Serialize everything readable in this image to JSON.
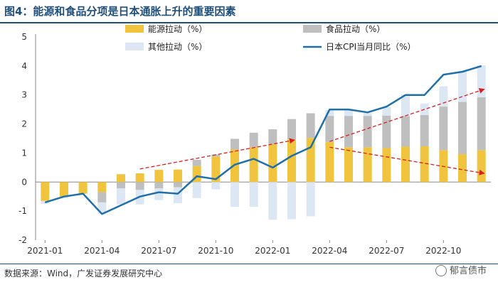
{
  "header": {
    "title": "图4：能源和食品分项是日本通胀上升的重要因素"
  },
  "footer": {
    "source": "数据来源：Wind，广发证券发展研究中心",
    "watermark": "郁言债市"
  },
  "colors": {
    "energy": "#f0c43c",
    "food": "#bfbfbf",
    "other": "#dde7f4",
    "cpi": "#1f6fa8",
    "trend": "#d42020"
  },
  "chart_data": {
    "type": "bar",
    "stacked": true,
    "title": "能源和食品分项是日本通胀上升的重要因素",
    "ylim": [
      -2,
      5
    ],
    "yticks": [
      -2,
      -1,
      0,
      1,
      2,
      3,
      4,
      5
    ],
    "xticks": [
      "2021-01",
      "2021-04",
      "2021-07",
      "2021-10",
      "2022-01",
      "2022-04",
      "2022-07",
      "2022-10"
    ],
    "categories": [
      "2021-01",
      "2021-02",
      "2021-03",
      "2021-04",
      "2021-05",
      "2021-06",
      "2021-07",
      "2021-08",
      "2021-09",
      "2021-10",
      "2021-11",
      "2021-12",
      "2022-01",
      "2022-02",
      "2022-03",
      "2022-04",
      "2022-05",
      "2022-06",
      "2022-07",
      "2022-08",
      "2022-09",
      "2022-10",
      "2022-11",
      "2022-12"
    ],
    "series": [
      {
        "name": "能源拉动（%）",
        "kind": "bar",
        "values": [
          -0.65,
          -0.5,
          -0.4,
          -0.35,
          0.27,
          0.3,
          0.42,
          0.43,
          0.55,
          0.88,
          1.12,
          1.2,
          1.3,
          1.47,
          1.52,
          1.38,
          1.2,
          1.2,
          1.17,
          1.22,
          1.23,
          1.1,
          0.96,
          1.1
        ]
      },
      {
        "name": "食品拉动（%）",
        "kind": "bar",
        "values": [
          0.0,
          0.0,
          0.0,
          -0.35,
          -0.22,
          -0.27,
          -0.22,
          -0.18,
          0.22,
          0.07,
          0.37,
          0.5,
          0.52,
          0.7,
          0.85,
          0.9,
          1.08,
          1.08,
          1.12,
          1.05,
          1.08,
          1.5,
          1.8,
          1.82
        ]
      },
      {
        "name": "其他拉动（%）",
        "kind": "bar",
        "values": [
          -0.1,
          -0.05,
          0.0,
          -0.4,
          -0.55,
          -0.5,
          -0.4,
          -0.55,
          -0.55,
          -0.25,
          -0.85,
          -0.85,
          -1.3,
          -1.28,
          -1.18,
          0.2,
          0.2,
          0.1,
          0.3,
          0.75,
          0.4,
          0.7,
          1.06,
          1.1
        ]
      },
      {
        "name": "日本CPI当月同比（%）",
        "kind": "line",
        "values": [
          -0.7,
          -0.5,
          -0.4,
          -1.1,
          -0.8,
          -0.5,
          -0.35,
          -0.4,
          0.2,
          0.1,
          0.6,
          0.8,
          0.5,
          0.9,
          1.2,
          2.5,
          2.5,
          2.4,
          2.6,
          3.0,
          3.0,
          3.7,
          3.8,
          4.0
        ]
      }
    ],
    "legend": [
      "能源拉动（%）",
      "食品拉动（%）",
      "其他拉动（%）",
      "日本CPI当月同比（%）"
    ],
    "annotations": [
      {
        "type": "arrow",
        "from": [
          "2021-06",
          0.45
        ],
        "to": [
          "2022-02",
          1.45
        ]
      },
      {
        "type": "arrow",
        "from": [
          "2022-04",
          1.4
        ],
        "to": [
          "2022-12",
          3.2
        ]
      },
      {
        "type": "arrow",
        "from": [
          "2022-04",
          1.2
        ],
        "to": [
          "2022-12",
          0.3
        ]
      }
    ]
  }
}
